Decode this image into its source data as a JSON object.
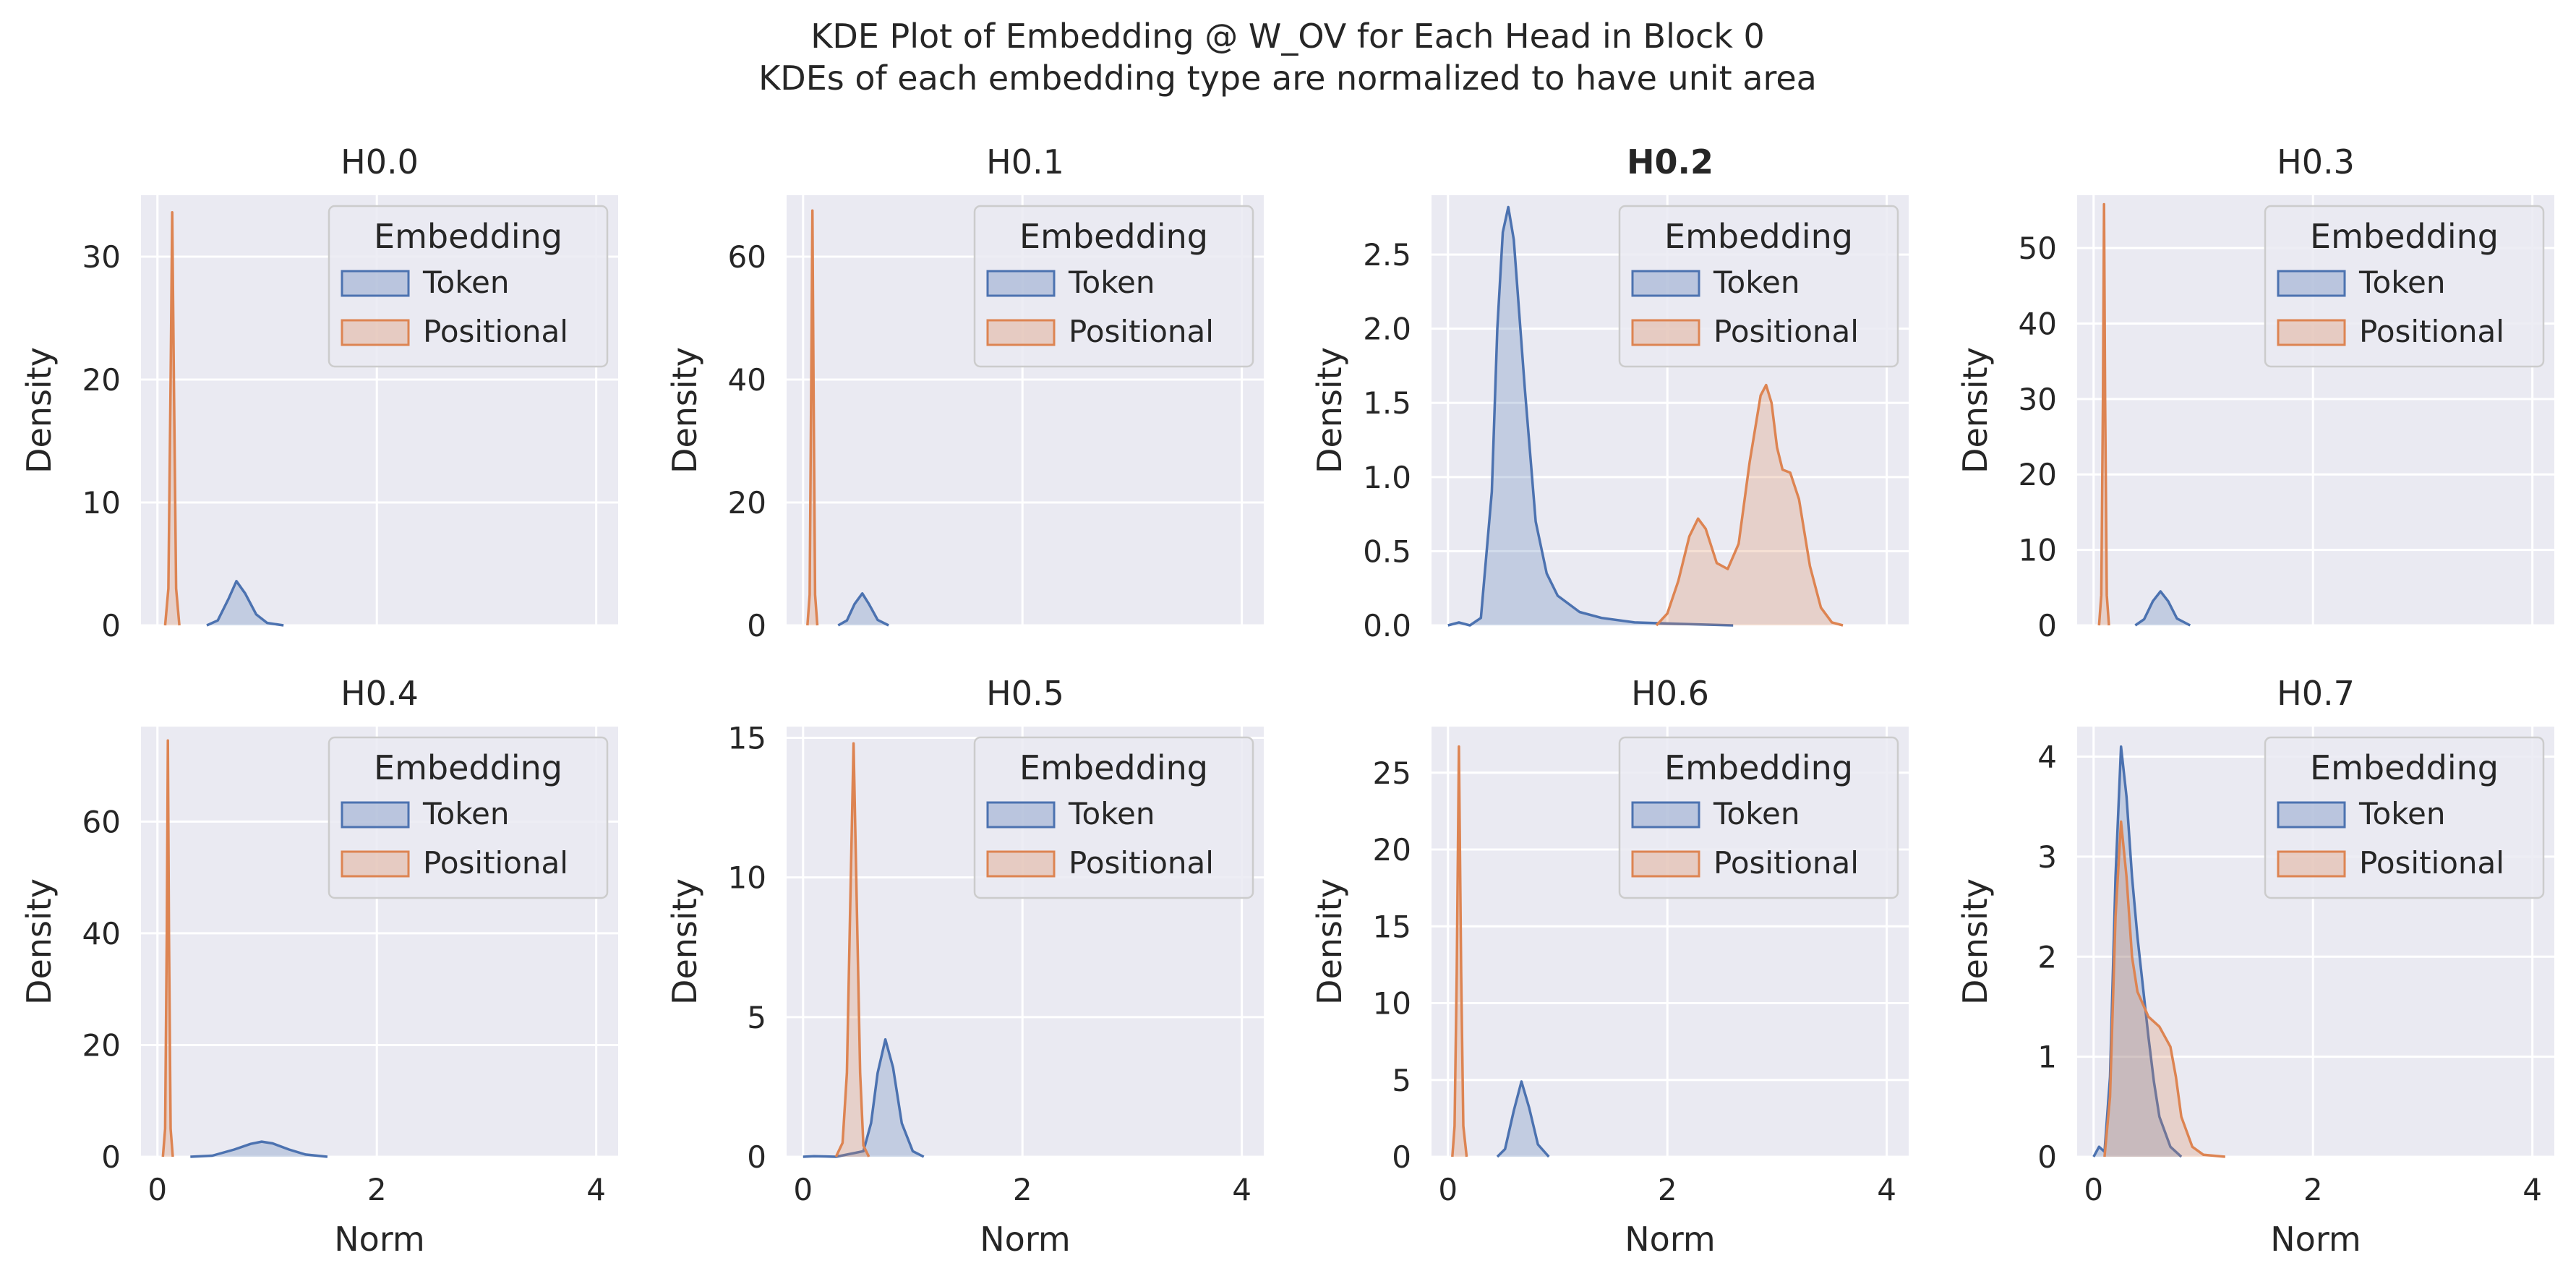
{
  "figure": {
    "title": "KDE Plot of Embedding @ W_OV for Each Head in Block 0",
    "subtitle": "KDEs of each embedding type are normalized to have unit area"
  },
  "colors": {
    "token": "#4c72b0",
    "positional": "#dd8452",
    "axes_bg": "#eaeaf2",
    "grid": "#ffffff"
  },
  "chart_data": {
    "type": "area",
    "layout": "2x4 grid, shared x axis",
    "xlabel": "Norm",
    "ylabel": "Density",
    "xlim": [
      -0.15,
      4.2
    ],
    "x_ticks": [
      0,
      2,
      4
    ],
    "grid": true,
    "legend": {
      "title": "Embedding",
      "placement": "upper-right",
      "entries": [
        "Token",
        "Positional"
      ]
    },
    "panels": [
      {
        "title": "H0.0",
        "bold": false,
        "ylim": [
          0,
          35
        ],
        "y_ticks": [
          0,
          10,
          20,
          30
        ],
        "series": [
          {
            "name": "Token",
            "points": [
              [
                0.45,
                0
              ],
              [
                0.55,
                0.4
              ],
              [
                0.65,
                2.2
              ],
              [
                0.72,
                3.6
              ],
              [
                0.8,
                2.6
              ],
              [
                0.9,
                0.9
              ],
              [
                1.0,
                0.2
              ],
              [
                1.15,
                0
              ]
            ]
          },
          {
            "name": "Positional",
            "points": [
              [
                0.07,
                0
              ],
              [
                0.1,
                3
              ],
              [
                0.12,
                20
              ],
              [
                0.135,
                33.6
              ],
              [
                0.15,
                20
              ],
              [
                0.17,
                3
              ],
              [
                0.2,
                0
              ]
            ]
          }
        ]
      },
      {
        "title": "H0.1",
        "bold": false,
        "ylim": [
          0,
          70
        ],
        "y_ticks": [
          0,
          20,
          40,
          60
        ],
        "series": [
          {
            "name": "Token",
            "points": [
              [
                0.32,
                0
              ],
              [
                0.4,
                0.8
              ],
              [
                0.47,
                3.5
              ],
              [
                0.54,
                5.2
              ],
              [
                0.6,
                3.5
              ],
              [
                0.68,
                0.9
              ],
              [
                0.78,
                0
              ]
            ]
          },
          {
            "name": "Positional",
            "points": [
              [
                0.04,
                0
              ],
              [
                0.06,
                5
              ],
              [
                0.075,
                40
              ],
              [
                0.085,
                67.5
              ],
              [
                0.095,
                40
              ],
              [
                0.11,
                5
              ],
              [
                0.13,
                0
              ]
            ]
          }
        ]
      },
      {
        "title": "H0.2",
        "bold": true,
        "ylim": [
          0,
          2.9
        ],
        "y_ticks": [
          0,
          0.5,
          1.0,
          1.5,
          2.0,
          2.5
        ],
        "series": [
          {
            "name": "Token",
            "points": [
              [
                0.0,
                0
              ],
              [
                0.1,
                0.02
              ],
              [
                0.2,
                0
              ],
              [
                0.3,
                0.05
              ],
              [
                0.4,
                0.9
              ],
              [
                0.45,
                2.0
              ],
              [
                0.5,
                2.65
              ],
              [
                0.55,
                2.82
              ],
              [
                0.6,
                2.6
              ],
              [
                0.7,
                1.6
              ],
              [
                0.8,
                0.7
              ],
              [
                0.9,
                0.35
              ],
              [
                1.0,
                0.2
              ],
              [
                1.2,
                0.09
              ],
              [
                1.4,
                0.05
              ],
              [
                1.7,
                0.02
              ],
              [
                2.1,
                0.01
              ],
              [
                2.6,
                0
              ]
            ]
          },
          {
            "name": "Positional",
            "points": [
              [
                1.9,
                0
              ],
              [
                2.0,
                0.08
              ],
              [
                2.1,
                0.3
              ],
              [
                2.2,
                0.6
              ],
              [
                2.28,
                0.72
              ],
              [
                2.35,
                0.65
              ],
              [
                2.45,
                0.42
              ],
              [
                2.55,
                0.38
              ],
              [
                2.65,
                0.55
              ],
              [
                2.75,
                1.1
              ],
              [
                2.85,
                1.55
              ],
              [
                2.9,
                1.62
              ],
              [
                2.95,
                1.5
              ],
              [
                3.0,
                1.2
              ],
              [
                3.05,
                1.05
              ],
              [
                3.12,
                1.03
              ],
              [
                3.2,
                0.85
              ],
              [
                3.3,
                0.4
              ],
              [
                3.4,
                0.12
              ],
              [
                3.5,
                0.02
              ],
              [
                3.6,
                0
              ]
            ]
          }
        ]
      },
      {
        "title": "H0.3",
        "bold": false,
        "ylim": [
          0,
          57
        ],
        "y_ticks": [
          0,
          10,
          20,
          30,
          40,
          50
        ],
        "series": [
          {
            "name": "Token",
            "points": [
              [
                0.38,
                0
              ],
              [
                0.46,
                0.8
              ],
              [
                0.54,
                3.2
              ],
              [
                0.61,
                4.5
              ],
              [
                0.68,
                3.2
              ],
              [
                0.76,
                0.9
              ],
              [
                0.88,
                0
              ]
            ]
          },
          {
            "name": "Positional",
            "points": [
              [
                0.05,
                0
              ],
              [
                0.07,
                4
              ],
              [
                0.085,
                30
              ],
              [
                0.095,
                55.8
              ],
              [
                0.105,
                30
              ],
              [
                0.12,
                4
              ],
              [
                0.14,
                0
              ]
            ]
          }
        ]
      },
      {
        "title": "H0.4",
        "bold": false,
        "ylim": [
          0,
          77
        ],
        "y_ticks": [
          0,
          20,
          40,
          60
        ],
        "series": [
          {
            "name": "Token",
            "points": [
              [
                0.3,
                0
              ],
              [
                0.5,
                0.2
              ],
              [
                0.7,
                1.3
              ],
              [
                0.85,
                2.3
              ],
              [
                0.95,
                2.7
              ],
              [
                1.05,
                2.4
              ],
              [
                1.2,
                1.3
              ],
              [
                1.35,
                0.4
              ],
              [
                1.55,
                0
              ]
            ]
          },
          {
            "name": "Positional",
            "points": [
              [
                0.05,
                0
              ],
              [
                0.07,
                5
              ],
              [
                0.085,
                40
              ],
              [
                0.095,
                74.5
              ],
              [
                0.105,
                40
              ],
              [
                0.12,
                5
              ],
              [
                0.14,
                0
              ]
            ]
          }
        ]
      },
      {
        "title": "H0.5",
        "bold": false,
        "ylim": [
          0,
          15.4
        ],
        "y_ticks": [
          0,
          5,
          10,
          15
        ],
        "series": [
          {
            "name": "Token",
            "points": [
              [
                0.0,
                0
              ],
              [
                0.1,
                0.02
              ],
              [
                0.3,
                0
              ],
              [
                0.55,
                0.2
              ],
              [
                0.62,
                1.2
              ],
              [
                0.68,
                3.0
              ],
              [
                0.75,
                4.2
              ],
              [
                0.82,
                3.2
              ],
              [
                0.9,
                1.2
              ],
              [
                1.0,
                0.2
              ],
              [
                1.1,
                0
              ]
            ]
          },
          {
            "name": "Positional",
            "points": [
              [
                0.3,
                0
              ],
              [
                0.36,
                0.5
              ],
              [
                0.4,
                3
              ],
              [
                0.43,
                9
              ],
              [
                0.46,
                14.8
              ],
              [
                0.49,
                9
              ],
              [
                0.52,
                3
              ],
              [
                0.55,
                0.4
              ],
              [
                0.6,
                0
              ]
            ]
          }
        ]
      },
      {
        "title": "H0.6",
        "bold": false,
        "ylim": [
          0,
          28
        ],
        "y_ticks": [
          0,
          5,
          10,
          15,
          20,
          25
        ],
        "series": [
          {
            "name": "Token",
            "points": [
              [
                0.45,
                0
              ],
              [
                0.52,
                0.5
              ],
              [
                0.6,
                3.0
              ],
              [
                0.67,
                4.9
              ],
              [
                0.74,
                3.2
              ],
              [
                0.82,
                0.8
              ],
              [
                0.92,
                0
              ]
            ]
          },
          {
            "name": "Positional",
            "points": [
              [
                0.04,
                0
              ],
              [
                0.06,
                2
              ],
              [
                0.08,
                12
              ],
              [
                0.1,
                26.7
              ],
              [
                0.12,
                12
              ],
              [
                0.14,
                2
              ],
              [
                0.17,
                0
              ]
            ]
          }
        ]
      },
      {
        "title": "H0.7",
        "bold": false,
        "ylim": [
          0,
          4.3
        ],
        "y_ticks": [
          0,
          1,
          2,
          3,
          4
        ],
        "series": [
          {
            "name": "Token",
            "points": [
              [
                0.0,
                0
              ],
              [
                0.05,
                0.1
              ],
              [
                0.1,
                0.05
              ],
              [
                0.15,
                0.8
              ],
              [
                0.2,
                2.8
              ],
              [
                0.25,
                4.1
              ],
              [
                0.3,
                3.6
              ],
              [
                0.35,
                2.8
              ],
              [
                0.4,
                2.2
              ],
              [
                0.45,
                1.7
              ],
              [
                0.5,
                1.2
              ],
              [
                0.55,
                0.75
              ],
              [
                0.6,
                0.4
              ],
              [
                0.7,
                0.1
              ],
              [
                0.8,
                0
              ]
            ]
          },
          {
            "name": "Positional",
            "points": [
              [
                0.1,
                0
              ],
              [
                0.15,
                0.6
              ],
              [
                0.2,
                2.4
              ],
              [
                0.25,
                3.35
              ],
              [
                0.3,
                2.8
              ],
              [
                0.35,
                2.0
              ],
              [
                0.4,
                1.65
              ],
              [
                0.5,
                1.4
              ],
              [
                0.6,
                1.3
              ],
              [
                0.7,
                1.1
              ],
              [
                0.75,
                0.8
              ],
              [
                0.8,
                0.4
              ],
              [
                0.9,
                0.1
              ],
              [
                1.0,
                0.02
              ],
              [
                1.2,
                0
              ]
            ]
          }
        ]
      }
    ]
  }
}
